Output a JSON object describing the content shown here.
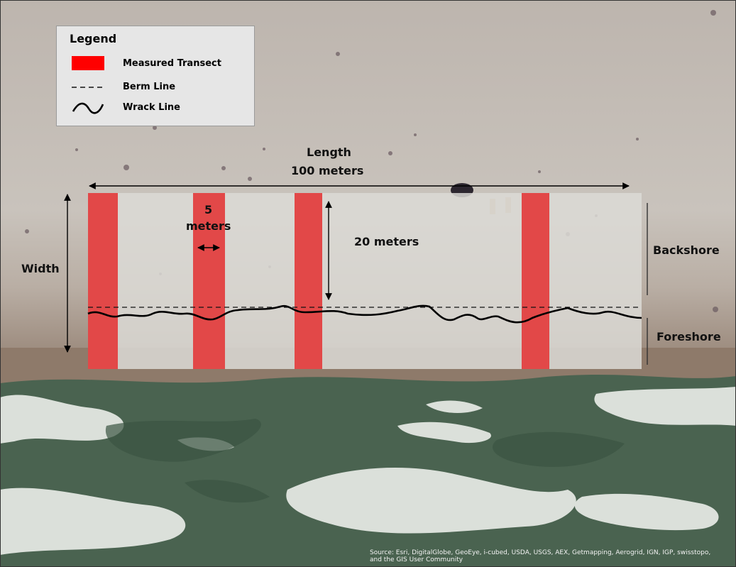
{
  "legend": {
    "title": "Legend",
    "items": [
      {
        "label": "Measured Transect",
        "symbol": "red-rect-icon"
      },
      {
        "label": "Berm Line",
        "symbol": "dashed-line-icon"
      },
      {
        "label": "Wrack Line",
        "symbol": "wavy-line-icon"
      }
    ]
  },
  "annotations": {
    "length_line1": "Length",
    "length_line2": "100 meters",
    "transect_width_line1": "5",
    "transect_width_line2": "meters",
    "depth": "20 meters",
    "width": "Width",
    "backshore": "Backshore",
    "foreshore": "Foreshore"
  },
  "attribution": {
    "line1": "Source: Esri, DigitalGlobe, GeoEye, i-cubed, USDA, USGS, AEX, Getmapping, Aerogrid, IGN, IGP, swisstopo,",
    "line2": "and the GIS User Community"
  },
  "colors": {
    "transect": "#e24848",
    "sand": "#c4bcb5",
    "study_area": "#d9d7d3",
    "ocean": "#47604e",
    "foam": "#e2e6e2",
    "wet_sand": "#8e7a6a"
  }
}
